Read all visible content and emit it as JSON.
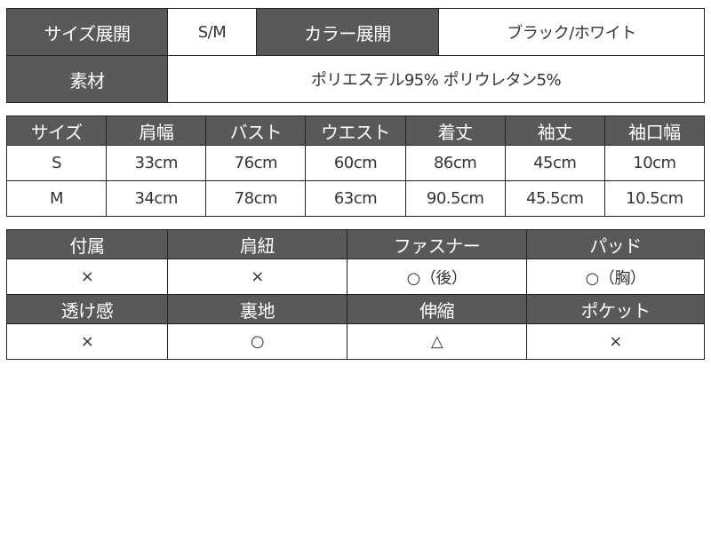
{
  "overview": {
    "size_label": "サイズ展開",
    "size_value": "S/M",
    "color_label": "カラー展開",
    "color_value": "ブラック/ホワイト",
    "material_label": "素材",
    "material_value": "ポリエステル95% ポリウレタン5%"
  },
  "size_table": {
    "headers": [
      "サイズ",
      "肩幅",
      "バスト",
      "ウエスト",
      "着丈",
      "袖丈",
      "袖口幅"
    ],
    "rows": [
      [
        "S",
        "33cm",
        "76cm",
        "60cm",
        "86cm",
        "45cm",
        "10cm"
      ],
      [
        "M",
        "34cm",
        "78cm",
        "63cm",
        "90.5cm",
        "45.5cm",
        "10.5cm"
      ]
    ]
  },
  "features": {
    "headers1": [
      "付属",
      "肩紐",
      "ファスナー",
      "パッド"
    ],
    "values1": [
      "×",
      "×",
      "○（後）",
      "○（胸）"
    ],
    "headers2": [
      "透け感",
      "裏地",
      "伸縮",
      "ポケット"
    ],
    "values2": [
      "×",
      "○",
      "△",
      "×"
    ]
  },
  "colors": {
    "header_bg": "#595959"
  }
}
